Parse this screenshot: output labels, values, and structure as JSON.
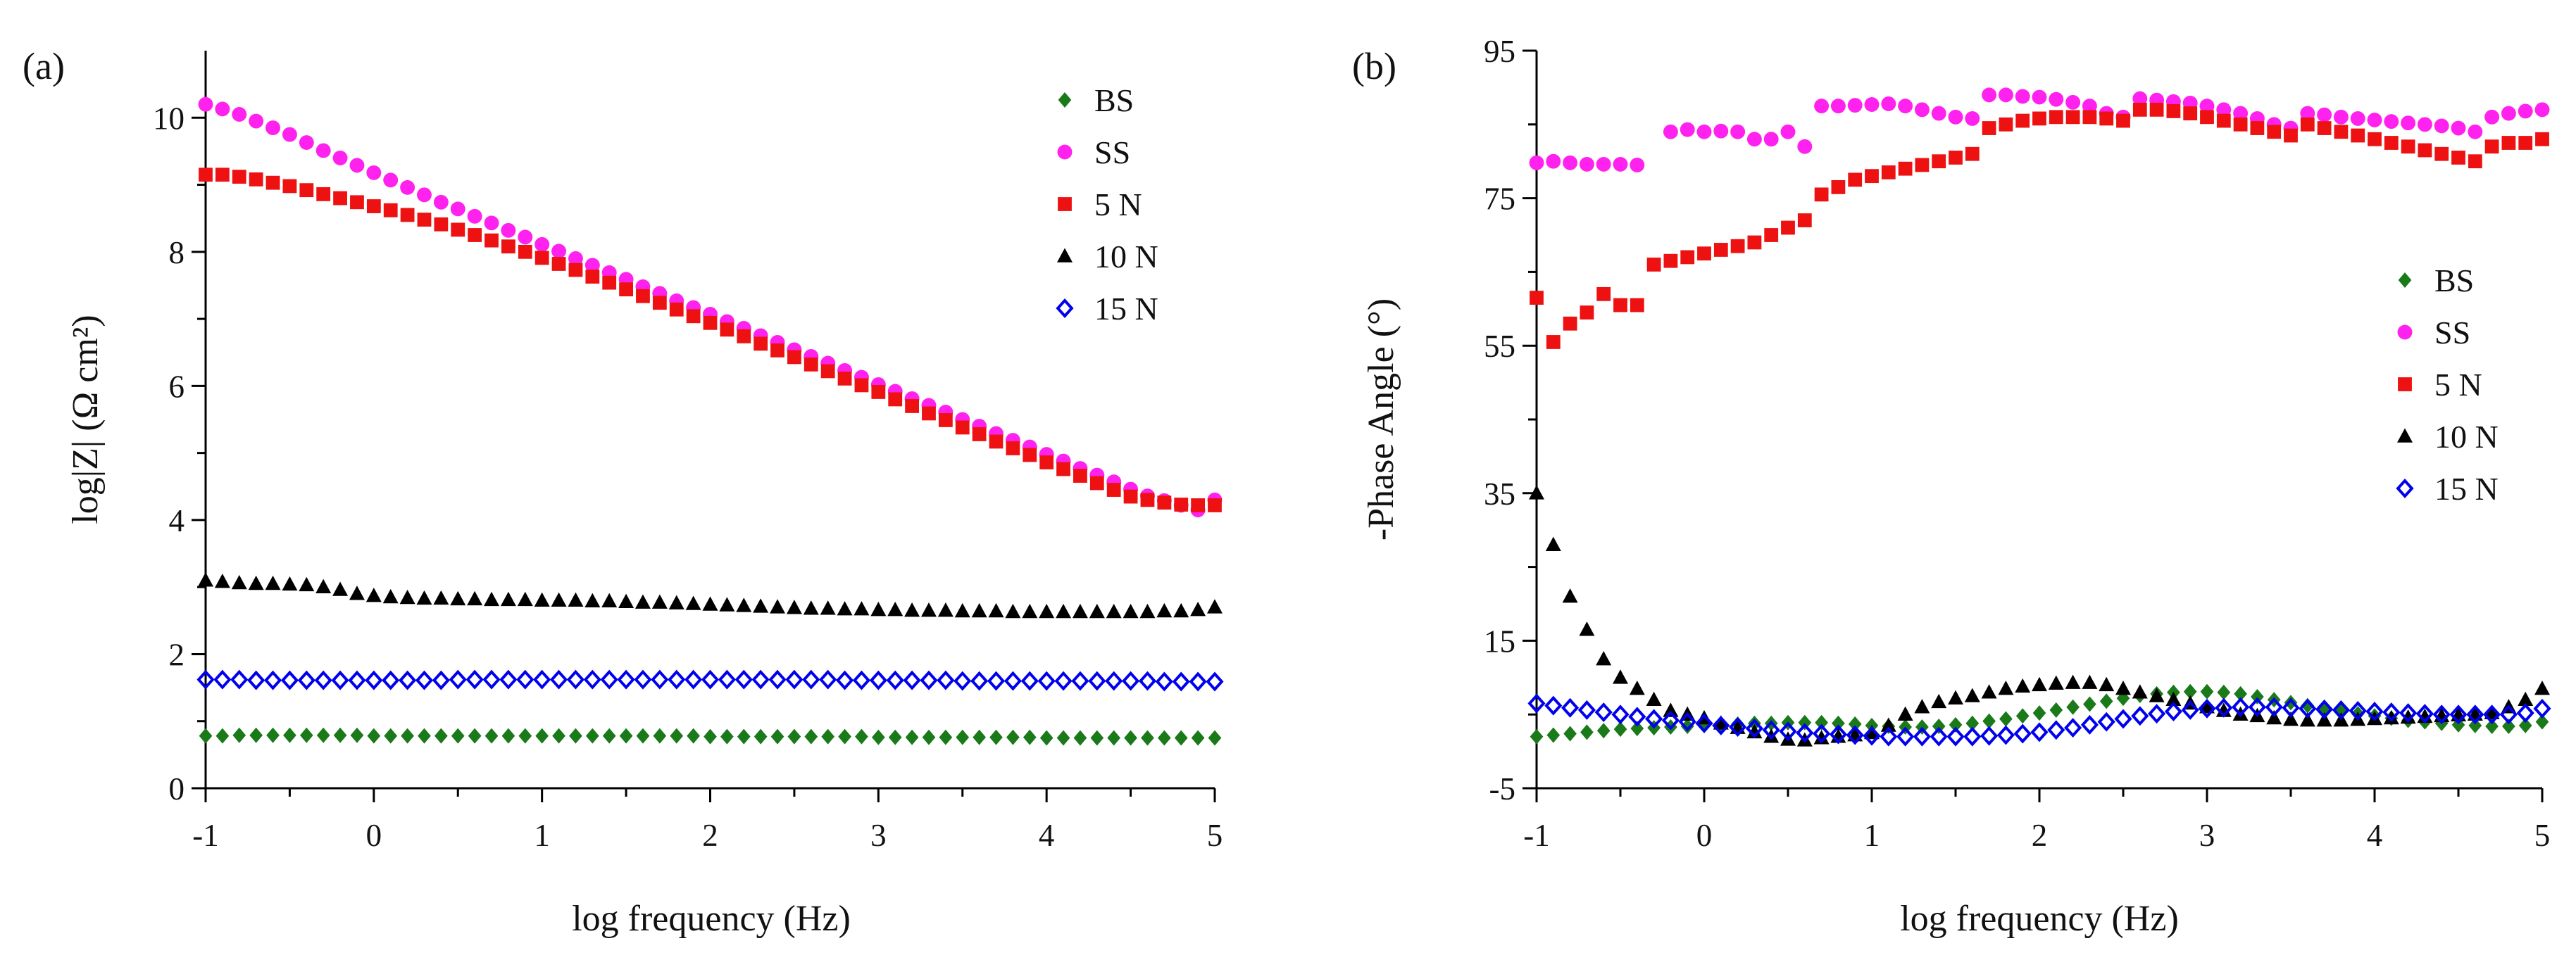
{
  "chart_data": [
    {
      "type": "scatter",
      "panel_label": "(a)",
      "title": "",
      "xlabel": "log frequency (Hz)",
      "ylabel": "log|Z| (Ω cm²)",
      "xlim": [
        -1,
        5
      ],
      "ylim": [
        0,
        11
      ],
      "xticks": [
        -1,
        0,
        1,
        2,
        3,
        4,
        5
      ],
      "xtick_labels": [
        "-1",
        "0",
        "1",
        "2",
        "3",
        "4",
        "5"
      ],
      "yticks": [
        0,
        2,
        4,
        6,
        8,
        10
      ],
      "ytick_labels": [
        "0",
        "2",
        "4",
        "6",
        "8",
        "10"
      ],
      "grid": false,
      "legend_position": "top-right",
      "series": [
        {
          "name": "BS",
          "marker": "diamond",
          "color": "#1a7a1a",
          "x_start": -1,
          "x_step": 0.1,
          "y": [
            0.78,
            0.78,
            0.79,
            0.79,
            0.79,
            0.79,
            0.79,
            0.79,
            0.79,
            0.79,
            0.78,
            0.78,
            0.78,
            0.78,
            0.78,
            0.78,
            0.78,
            0.78,
            0.78,
            0.78,
            0.78,
            0.78,
            0.78,
            0.78,
            0.78,
            0.78,
            0.78,
            0.78,
            0.78,
            0.78,
            0.77,
            0.77,
            0.77,
            0.77,
            0.77,
            0.77,
            0.77,
            0.77,
            0.77,
            0.77,
            0.76,
            0.76,
            0.76,
            0.76,
            0.76,
            0.76,
            0.76,
            0.76,
            0.76,
            0.76,
            0.75,
            0.75,
            0.75,
            0.75,
            0.75,
            0.75,
            0.75,
            0.75,
            0.75,
            0.75,
            0.75
          ]
        },
        {
          "name": "SS",
          "marker": "circle",
          "color": "#ff22ee",
          "x_start": -1,
          "x_step": 0.1,
          "y": [
            10.2,
            10.13,
            10.05,
            9.95,
            9.85,
            9.75,
            9.63,
            9.51,
            9.4,
            9.29,
            9.18,
            9.07,
            8.96,
            8.85,
            8.74,
            8.64,
            8.53,
            8.43,
            8.32,
            8.22,
            8.11,
            8.01,
            7.9,
            7.8,
            7.69,
            7.59,
            7.48,
            7.38,
            7.27,
            7.17,
            7.07,
            6.96,
            6.86,
            6.75,
            6.65,
            6.54,
            6.44,
            6.34,
            6.23,
            6.13,
            6.02,
            5.92,
            5.81,
            5.71,
            5.61,
            5.5,
            5.4,
            5.29,
            5.19,
            5.09,
            4.98,
            4.88,
            4.77,
            4.67,
            4.57,
            4.46,
            4.36,
            4.29,
            4.22,
            4.15,
            4.3
          ]
        },
        {
          "name": "5 N",
          "marker": "square",
          "color": "#ee1111",
          "x_start": -1,
          "x_step": 0.1,
          "y": [
            9.15,
            9.15,
            9.12,
            9.08,
            9.03,
            8.98,
            8.92,
            8.86,
            8.8,
            8.74,
            8.68,
            8.62,
            8.55,
            8.48,
            8.41,
            8.33,
            8.25,
            8.17,
            8.08,
            8.0,
            7.91,
            7.82,
            7.73,
            7.63,
            7.54,
            7.44,
            7.34,
            7.24,
            7.14,
            7.04,
            6.94,
            6.84,
            6.74,
            6.63,
            6.53,
            6.43,
            6.32,
            6.22,
            6.11,
            6.01,
            5.91,
            5.8,
            5.7,
            5.59,
            5.49,
            5.38,
            5.28,
            5.17,
            5.07,
            4.97,
            4.86,
            4.76,
            4.66,
            4.55,
            4.45,
            4.35,
            4.3,
            4.26,
            4.23,
            4.22,
            4.22
          ]
        },
        {
          "name": "10 N",
          "marker": "triangle",
          "color": "#000000",
          "x_start": -1,
          "x_step": 0.1,
          "y": [
            3.1,
            3.08,
            3.06,
            3.05,
            3.05,
            3.04,
            3.03,
            3.0,
            2.96,
            2.9,
            2.87,
            2.85,
            2.84,
            2.83,
            2.83,
            2.82,
            2.82,
            2.81,
            2.81,
            2.81,
            2.8,
            2.8,
            2.8,
            2.79,
            2.79,
            2.78,
            2.77,
            2.77,
            2.76,
            2.75,
            2.74,
            2.73,
            2.72,
            2.71,
            2.7,
            2.69,
            2.68,
            2.68,
            2.67,
            2.67,
            2.66,
            2.66,
            2.65,
            2.65,
            2.65,
            2.64,
            2.64,
            2.64,
            2.63,
            2.63,
            2.63,
            2.63,
            2.63,
            2.63,
            2.63,
            2.63,
            2.63,
            2.64,
            2.64,
            2.66,
            2.7
          ]
        },
        {
          "name": "15 N",
          "marker": "open-diamond",
          "color": "#0000ee",
          "x_start": -1,
          "x_step": 0.1,
          "y": [
            1.62,
            1.62,
            1.62,
            1.61,
            1.61,
            1.61,
            1.61,
            1.61,
            1.61,
            1.61,
            1.61,
            1.61,
            1.61,
            1.61,
            1.61,
            1.62,
            1.62,
            1.62,
            1.62,
            1.62,
            1.62,
            1.62,
            1.62,
            1.62,
            1.62,
            1.62,
            1.62,
            1.62,
            1.62,
            1.62,
            1.62,
            1.62,
            1.62,
            1.62,
            1.62,
            1.62,
            1.62,
            1.62,
            1.61,
            1.61,
            1.61,
            1.61,
            1.61,
            1.61,
            1.61,
            1.6,
            1.6,
            1.6,
            1.6,
            1.6,
            1.6,
            1.6,
            1.6,
            1.6,
            1.6,
            1.6,
            1.6,
            1.59,
            1.59,
            1.59,
            1.59
          ]
        }
      ]
    },
    {
      "type": "scatter",
      "panel_label": "(b)",
      "title": "",
      "xlabel": "log frequency (Hz)",
      "ylabel": "-Phase Angle (°)",
      "xlim": [
        -1,
        5
      ],
      "ylim": [
        -5,
        95
      ],
      "xticks": [
        -1,
        0,
        1,
        2,
        3,
        4,
        5
      ],
      "xtick_labels": [
        "-1",
        "0",
        "1",
        "2",
        "3",
        "4",
        "5"
      ],
      "yticks": [
        -5,
        15,
        35,
        55,
        75,
        95
      ],
      "ytick_labels": [
        "-5",
        "15",
        "35",
        "55",
        "75",
        "95"
      ],
      "grid": false,
      "legend_position": "right",
      "series": [
        {
          "name": "BS",
          "marker": "diamond",
          "color": "#1a7a1a",
          "x_start": -1,
          "x_step": 0.1,
          "y": [
            2.0,
            2.2,
            2.4,
            2.6,
            2.8,
            3.0,
            3.1,
            3.2,
            3.3,
            3.4,
            3.5,
            3.6,
            3.7,
            3.8,
            3.8,
            3.9,
            3.9,
            3.9,
            3.8,
            3.7,
            3.5,
            3.4,
            3.3,
            3.3,
            3.4,
            3.6,
            3.8,
            4.1,
            4.4,
            4.8,
            5.2,
            5.6,
            6.0,
            6.4,
            6.8,
            7.2,
            7.6,
            7.8,
            8.0,
            8.1,
            8.1,
            8.0,
            7.8,
            7.4,
            7.0,
            6.6,
            6.2,
            5.8,
            5.5,
            5.1,
            4.8,
            4.5,
            4.2,
            4.0,
            3.8,
            3.6,
            3.5,
            3.4,
            3.4,
            3.5,
            4.0
          ]
        },
        {
          "name": "SS",
          "marker": "circle",
          "color": "#ff22ee",
          "x_start": -1,
          "x_step": 0.1,
          "y": [
            79.8,
            80.0,
            79.8,
            79.6,
            79.6,
            79.6,
            79.5,
            null,
            84.0,
            84.3,
            84.0,
            84.1,
            84.0,
            83.0,
            83.0,
            84.0,
            82.0,
            87.5,
            87.5,
            87.6,
            87.7,
            87.8,
            87.5,
            87.0,
            86.5,
            86.0,
            85.8,
            89.0,
            89.0,
            88.8,
            88.7,
            88.4,
            88.0,
            87.5,
            86.5,
            86.0,
            88.5,
            88.3,
            88.1,
            87.9,
            87.5,
            87.0,
            86.5,
            85.8,
            85.0,
            84.5,
            86.5,
            86.3,
            86.0,
            85.8,
            85.6,
            85.4,
            85.2,
            85.0,
            84.8,
            84.5,
            84.0,
            86.0,
            86.5,
            86.8,
            87.0
          ]
        },
        {
          "name": "5 N",
          "marker": "square",
          "color": "#ee1111",
          "x_start": -1,
          "x_step": 0.1,
          "y": [
            61.5,
            55.5,
            58.0,
            59.5,
            62.0,
            60.5,
            60.5,
            66.0,
            66.5,
            67.0,
            67.5,
            68.0,
            68.5,
            69.0,
            70.0,
            71.0,
            72.0,
            75.5,
            76.5,
            77.5,
            78.0,
            78.5,
            79.0,
            79.5,
            80.0,
            80.5,
            81.0,
            84.5,
            85.0,
            85.5,
            85.8,
            86.0,
            86.0,
            86.0,
            85.8,
            85.5,
            87.0,
            87.0,
            86.8,
            86.5,
            86.0,
            85.5,
            85.0,
            84.5,
            84.0,
            83.5,
            85.0,
            84.5,
            84.0,
            83.5,
            83.0,
            82.5,
            82.0,
            81.5,
            81.0,
            80.5,
            80.0,
            82.0,
            82.5,
            82.5,
            83.0
          ]
        },
        {
          "name": "10 N",
          "marker": "triangle",
          "color": "#000000",
          "x_start": -1,
          "x_step": 0.1,
          "y": [
            35.0,
            28.0,
            21.0,
            16.5,
            12.5,
            10.0,
            8.5,
            7.0,
            5.5,
            5.0,
            4.5,
            3.8,
            3.2,
            2.6,
            2.0,
            1.6,
            1.5,
            1.8,
            2.0,
            2.2,
            2.5,
            3.5,
            5.0,
            6.0,
            6.7,
            7.2,
            7.5,
            8.0,
            8.5,
            8.8,
            9.0,
            9.2,
            9.3,
            9.3,
            9.0,
            8.5,
            8.0,
            7.5,
            7.0,
            6.5,
            6.0,
            5.5,
            5.0,
            4.8,
            4.5,
            4.3,
            4.2,
            4.2,
            4.2,
            4.3,
            4.4,
            4.5,
            4.6,
            4.7,
            4.8,
            4.9,
            5.0,
            5.2,
            6.0,
            7.0,
            8.5
          ]
        },
        {
          "name": "15 N",
          "marker": "open-diamond",
          "color": "#0000ee",
          "x_start": -1,
          "x_step": 0.1,
          "y": [
            6.5,
            6.2,
            5.9,
            5.6,
            5.3,
            5.0,
            4.7,
            4.4,
            4.2,
            4.0,
            3.8,
            3.5,
            3.3,
            3.1,
            2.9,
            2.7,
            2.5,
            2.4,
            2.3,
            2.2,
            2.1,
            2.0,
            2.0,
            2.0,
            2.0,
            2.0,
            2.0,
            2.1,
            2.2,
            2.4,
            2.6,
            2.9,
            3.2,
            3.6,
            4.0,
            4.4,
            4.8,
            5.1,
            5.4,
            5.6,
            5.8,
            5.9,
            6.0,
            6.0,
            6.0,
            5.9,
            5.8,
            5.7,
            5.6,
            5.5,
            5.4,
            5.3,
            5.2,
            5.1,
            5.0,
            5.0,
            5.0,
            5.0,
            5.0,
            5.2,
            5.8
          ]
        }
      ]
    }
  ]
}
